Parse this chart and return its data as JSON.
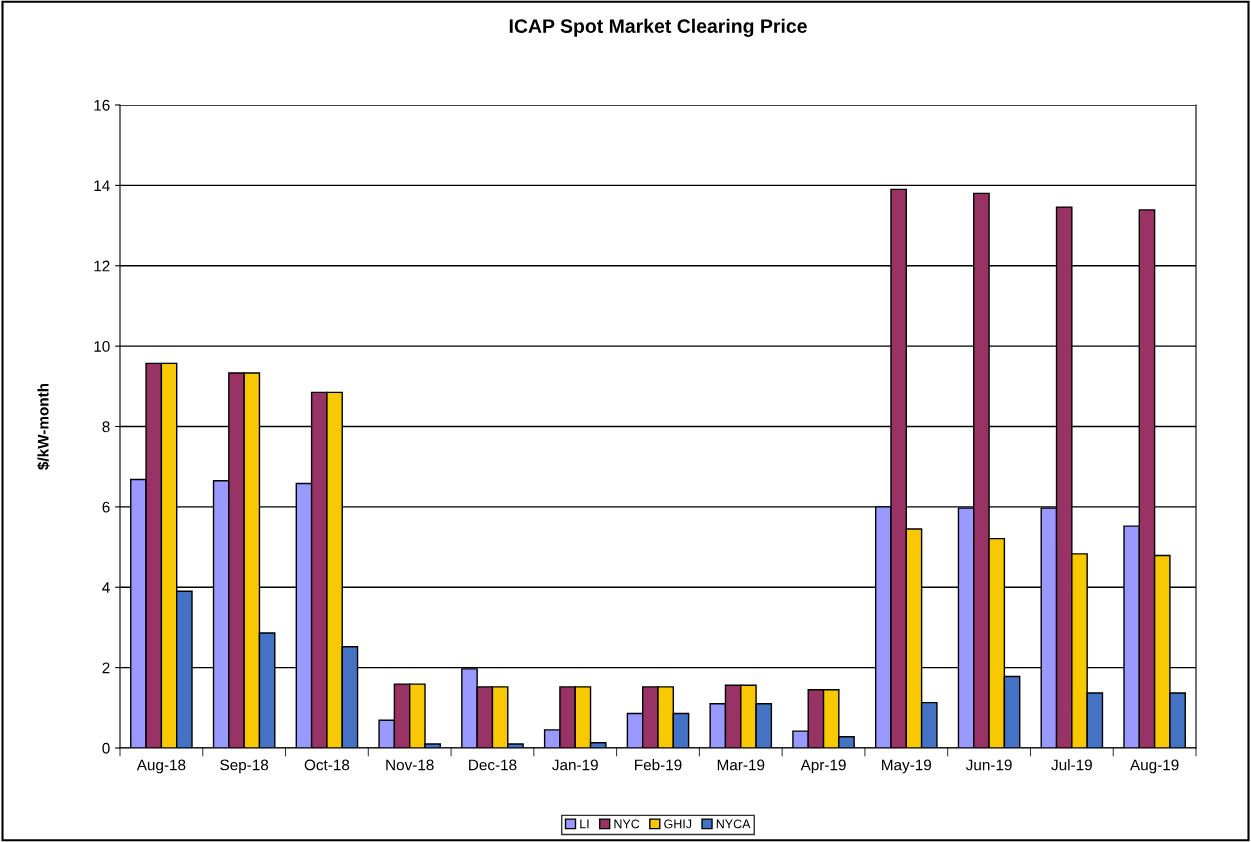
{
  "chart_data": {
    "type": "bar",
    "title": "ICAP Spot Market Clearing Price",
    "ylabel": "$/kW-month",
    "categories": [
      "Aug-18",
      "Sep-18",
      "Oct-18",
      "Nov-18",
      "Dec-18",
      "Jan-19",
      "Feb-19",
      "Mar-19",
      "Apr-19",
      "May-19",
      "Jun-19",
      "Jul-19",
      "Aug-19"
    ],
    "series": [
      {
        "name": "LI",
        "color": "#9999ff",
        "values": [
          6.68,
          6.65,
          6.58,
          0.69,
          1.97,
          0.45,
          0.86,
          1.1,
          0.42,
          6.0,
          5.97,
          5.97,
          5.52
        ]
      },
      {
        "name": "NYC",
        "color": "#993366",
        "values": [
          9.57,
          9.33,
          8.85,
          1.59,
          1.52,
          1.52,
          1.52,
          1.56,
          1.45,
          13.9,
          13.8,
          13.46,
          13.39
        ]
      },
      {
        "name": "GHIJ",
        "color": "#f8c800",
        "values": [
          9.57,
          9.33,
          8.85,
          1.59,
          1.52,
          1.52,
          1.52,
          1.56,
          1.45,
          5.45,
          5.21,
          4.83,
          4.79
        ]
      },
      {
        "name": "NYCA",
        "color": "#4472c4",
        "values": [
          3.9,
          2.86,
          2.52,
          0.1,
          0.1,
          0.13,
          0.86,
          1.1,
          0.28,
          1.13,
          1.78,
          1.37,
          1.37
        ]
      }
    ],
    "ylim": [
      0,
      16
    ],
    "yticks": [
      0,
      2,
      4,
      6,
      8,
      10,
      12,
      14,
      16
    ],
    "grid": "y",
    "legend": "bottom"
  }
}
